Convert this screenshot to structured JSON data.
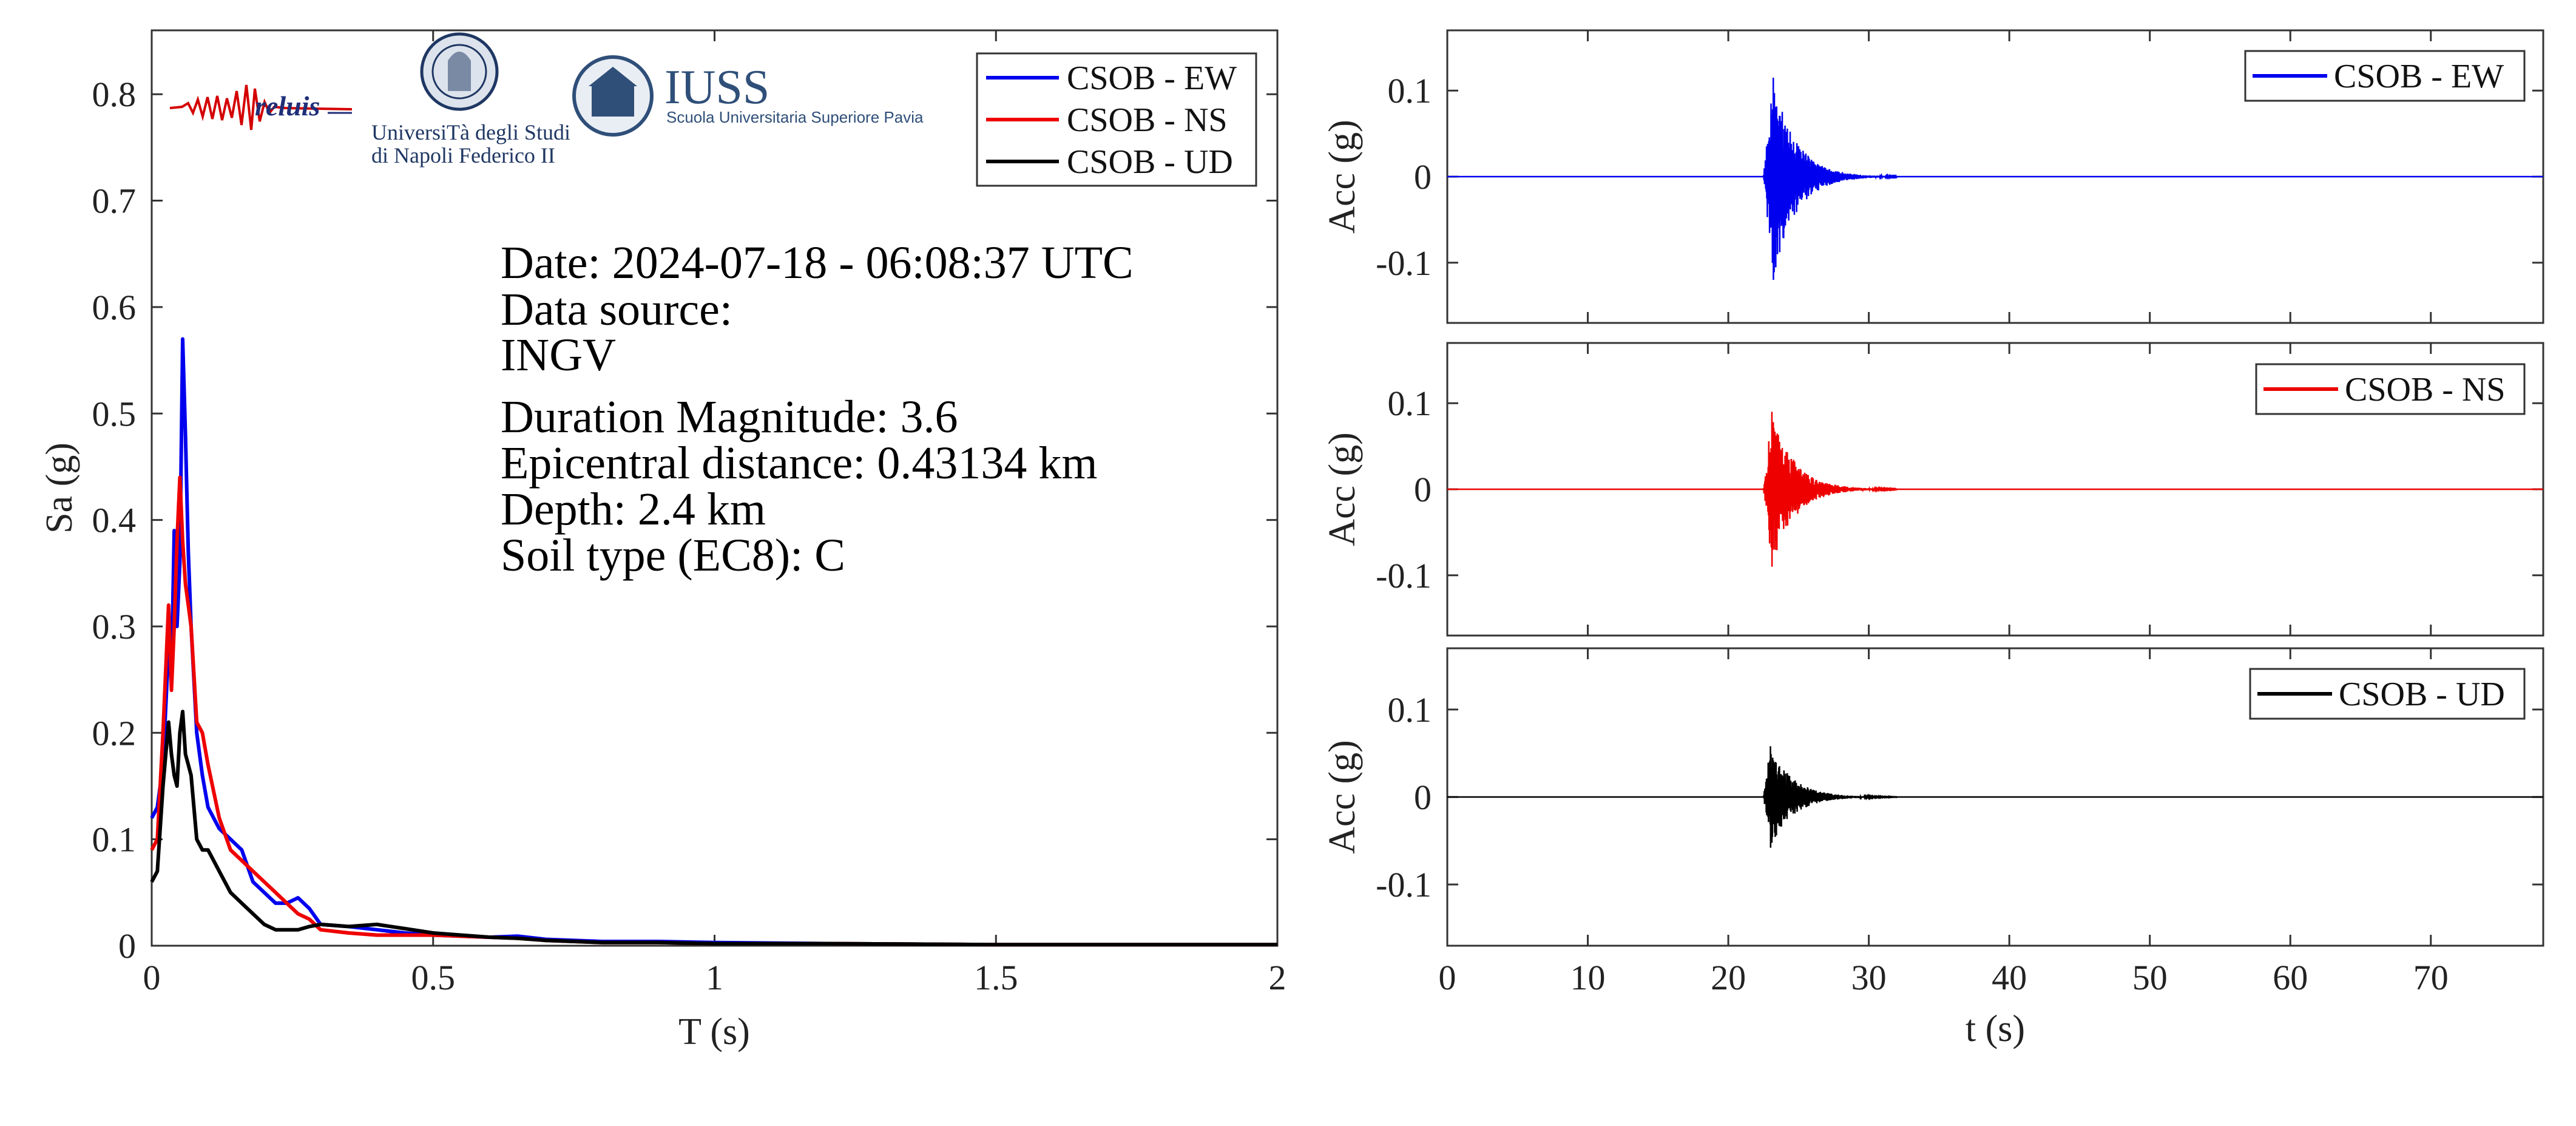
{
  "chart_data": [
    {
      "type": "line",
      "xlabel": "T (s)",
      "ylabel": "Sa (g)",
      "xlim": [
        0,
        2
      ],
      "ylim": [
        0,
        0.86
      ],
      "xticks": [
        0,
        0.5,
        1,
        1.5,
        2
      ],
      "xtick_labels": [
        "0",
        "0.5",
        "1",
        "1.5",
        "2"
      ],
      "yticks": [
        0,
        0.1,
        0.2,
        0.3,
        0.4,
        0.5,
        0.6,
        0.7,
        0.8
      ],
      "ytick_labels": [
        "0",
        "0.1",
        "0.2",
        "0.3",
        "0.4",
        "0.5",
        "0.6",
        "0.7",
        "0.8"
      ],
      "legend_position": "top-right",
      "grid": false,
      "annotations": [
        "Date: 2024-07-18 - 06:08:37 UTC",
        "Data source:",
        "INGV",
        "Duration Magnitude: 3.6",
        "Epicentral distance: 0.43134 km",
        "Depth: 2.4 km",
        "Soil type (EC8): C"
      ],
      "series": [
        {
          "name": "CSOB - EW",
          "color": "#0000ee",
          "x": [
            0,
            0.01,
            0.02,
            0.03,
            0.035,
            0.04,
            0.045,
            0.05,
            0.055,
            0.06,
            0.065,
            0.07,
            0.08,
            0.09,
            0.1,
            0.12,
            0.14,
            0.16,
            0.18,
            0.2,
            0.22,
            0.24,
            0.26,
            0.28,
            0.3,
            0.35,
            0.4,
            0.45,
            0.5,
            0.6,
            0.65,
            0.7,
            0.8,
            0.9,
            1.0,
            1.2,
            1.5,
            1.8,
            2.0
          ],
          "y": [
            0.12,
            0.13,
            0.17,
            0.28,
            0.25,
            0.39,
            0.3,
            0.36,
            0.57,
            0.48,
            0.37,
            0.3,
            0.2,
            0.16,
            0.13,
            0.11,
            0.1,
            0.09,
            0.06,
            0.05,
            0.04,
            0.04,
            0.045,
            0.035,
            0.02,
            0.018,
            0.015,
            0.012,
            0.01,
            0.008,
            0.009,
            0.006,
            0.004,
            0.004,
            0.003,
            0.002,
            0.001,
            0.001,
            0.001
          ]
        },
        {
          "name": "CSOB - NS",
          "color": "#ee0000",
          "x": [
            0,
            0.01,
            0.02,
            0.03,
            0.035,
            0.04,
            0.045,
            0.05,
            0.055,
            0.06,
            0.065,
            0.07,
            0.08,
            0.09,
            0.1,
            0.12,
            0.14,
            0.16,
            0.18,
            0.2,
            0.22,
            0.24,
            0.26,
            0.28,
            0.3,
            0.35,
            0.4,
            0.45,
            0.5,
            0.6,
            0.65,
            0.7,
            0.8,
            0.9,
            1.0,
            1.2,
            1.5,
            1.8,
            2.0
          ],
          "y": [
            0.09,
            0.1,
            0.2,
            0.32,
            0.24,
            0.3,
            0.38,
            0.44,
            0.38,
            0.34,
            0.32,
            0.3,
            0.21,
            0.2,
            0.17,
            0.12,
            0.09,
            0.08,
            0.07,
            0.06,
            0.05,
            0.04,
            0.03,
            0.025,
            0.015,
            0.012,
            0.01,
            0.01,
            0.01,
            0.008,
            0.007,
            0.005,
            0.003,
            0.003,
            0.002,
            0.002,
            0.001,
            0.001,
            0.001
          ]
        },
        {
          "name": "CSOB - UD",
          "color": "#000000",
          "x": [
            0,
            0.01,
            0.02,
            0.03,
            0.035,
            0.04,
            0.045,
            0.05,
            0.055,
            0.06,
            0.065,
            0.07,
            0.08,
            0.09,
            0.1,
            0.12,
            0.14,
            0.16,
            0.18,
            0.2,
            0.22,
            0.24,
            0.26,
            0.28,
            0.3,
            0.35,
            0.4,
            0.45,
            0.5,
            0.6,
            0.65,
            0.7,
            0.8,
            0.9,
            1.0,
            1.2,
            1.5,
            1.8,
            2.0
          ],
          "y": [
            0.06,
            0.07,
            0.15,
            0.21,
            0.18,
            0.16,
            0.15,
            0.2,
            0.22,
            0.18,
            0.17,
            0.16,
            0.1,
            0.09,
            0.09,
            0.07,
            0.05,
            0.04,
            0.03,
            0.02,
            0.015,
            0.015,
            0.015,
            0.018,
            0.02,
            0.018,
            0.02,
            0.016,
            0.012,
            0.008,
            0.007,
            0.005,
            0.003,
            0.003,
            0.002,
            0.002,
            0.001,
            0.001,
            0.001
          ]
        }
      ]
    },
    {
      "type": "line",
      "xlabel": "",
      "ylabel": "Acc (g)",
      "xlim": [
        0,
        78
      ],
      "ylim": [
        -0.17,
        0.17
      ],
      "yticks": [
        -0.1,
        0,
        0.1
      ],
      "ytick_labels": [
        "-0.1",
        "0",
        "0.1"
      ],
      "legend_position": "top-right",
      "series": [
        {
          "name": "CSOB - EW",
          "color": "#0000ee",
          "event_onset": 22.5,
          "peak_time": 23.2,
          "peak_max": 0.115,
          "peak_min": -0.12,
          "decay_end": 32
        }
      ]
    },
    {
      "type": "line",
      "xlabel": "",
      "ylabel": "Acc (g)",
      "xlim": [
        0,
        78
      ],
      "ylim": [
        -0.17,
        0.17
      ],
      "yticks": [
        -0.1,
        0,
        0.1
      ],
      "ytick_labels": [
        "-0.1",
        "0",
        "0.1"
      ],
      "legend_position": "top-right",
      "series": [
        {
          "name": "CSOB - NS",
          "color": "#ee0000",
          "event_onset": 22.5,
          "peak_time": 23.1,
          "peak_max": 0.09,
          "peak_min": -0.09,
          "decay_end": 32
        }
      ]
    },
    {
      "type": "line",
      "xlabel": "t (s)",
      "ylabel": "Acc (g)",
      "xlim": [
        0,
        78
      ],
      "ylim": [
        -0.17,
        0.17
      ],
      "xticks": [
        0,
        10,
        20,
        30,
        40,
        50,
        60,
        70
      ],
      "xtick_labels": [
        "0",
        "10",
        "20",
        "30",
        "40",
        "50",
        "60",
        "70"
      ],
      "yticks": [
        -0.1,
        0,
        0.1
      ],
      "ytick_labels": [
        "-0.1",
        "0",
        "0.1"
      ],
      "legend_position": "top-right",
      "series": [
        {
          "name": "CSOB - UD",
          "color": "#000000",
          "event_onset": 22.5,
          "peak_time": 23.0,
          "peak_max": 0.058,
          "peak_min": -0.058,
          "decay_end": 32
        }
      ]
    }
  ],
  "logos": {
    "reluis": "reluis",
    "university_line1": "UniversiTà degli Studi",
    "university_line2": "di Napoli Federico II",
    "iuss_title": "IUSS",
    "iuss_subtitle": "Scuola Universitaria Superiore Pavia"
  }
}
